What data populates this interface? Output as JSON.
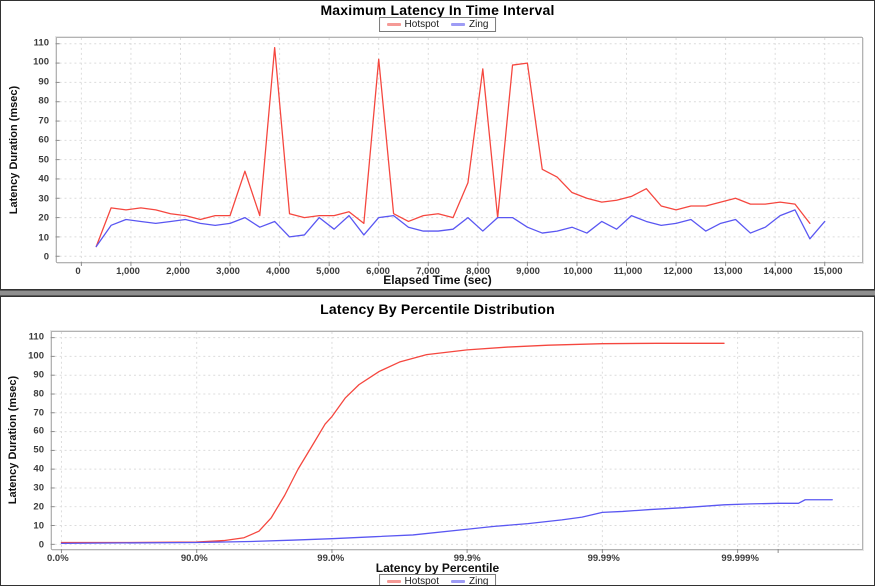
{
  "chart_data": [
    {
      "type": "line",
      "title": "Maximum Latency In Time Interval",
      "legend_position": "top",
      "grid": "dashed horizontal and vertical",
      "x_axis": {
        "label": "Elapsed Time (sec)",
        "min": -440,
        "max": 15700,
        "ticks": [
          {
            "v": 0,
            "label": "0"
          },
          {
            "v": 1000,
            "label": "1,000"
          },
          {
            "v": 2000,
            "label": "2,000"
          },
          {
            "v": 3000,
            "label": "3,000"
          },
          {
            "v": 4000,
            "label": "4,000"
          },
          {
            "v": 5000,
            "label": "5,000"
          },
          {
            "v": 6000,
            "label": "6,000"
          },
          {
            "v": 7000,
            "label": "7,000"
          },
          {
            "v": 8000,
            "label": "8,000"
          },
          {
            "v": 9000,
            "label": "9,000"
          },
          {
            "v": 10000,
            "label": "10,000"
          },
          {
            "v": 11000,
            "label": "11,000"
          },
          {
            "v": 12000,
            "label": "12,000"
          },
          {
            "v": 13000,
            "label": "13,000"
          },
          {
            "v": 14000,
            "label": "14,000"
          },
          {
            "v": 15000,
            "label": "15,000"
          }
        ]
      },
      "y_axis": {
        "label": "Latency Duration (msec)",
        "min": -3,
        "max": 113,
        "ticks": [
          {
            "v": 0,
            "label": "0"
          },
          {
            "v": 10,
            "label": "10"
          },
          {
            "v": 20,
            "label": "20"
          },
          {
            "v": 30,
            "label": "30"
          },
          {
            "v": 40,
            "label": "40"
          },
          {
            "v": 50,
            "label": "50"
          },
          {
            "v": 60,
            "label": "60"
          },
          {
            "v": 70,
            "label": "70"
          },
          {
            "v": 80,
            "label": "80"
          },
          {
            "v": 90,
            "label": "90"
          },
          {
            "v": 100,
            "label": "100"
          },
          {
            "v": 110,
            "label": "110"
          }
        ]
      },
      "series": [
        {
          "name": "Hotspot",
          "color": "#f5473f",
          "legend_color": "#f59a96",
          "points": [
            [
              300,
              5
            ],
            [
              600,
              25
            ],
            [
              900,
              24
            ],
            [
              1200,
              25
            ],
            [
              1500,
              24
            ],
            [
              1800,
              22
            ],
            [
              2100,
              21
            ],
            [
              2400,
              19
            ],
            [
              2700,
              21
            ],
            [
              3000,
              21
            ],
            [
              3300,
              44
            ],
            [
              3600,
              21
            ],
            [
              3900,
              108
            ],
            [
              4200,
              22
            ],
            [
              4500,
              20
            ],
            [
              4800,
              21
            ],
            [
              5100,
              21
            ],
            [
              5400,
              23
            ],
            [
              5700,
              17
            ],
            [
              6000,
              102
            ],
            [
              6300,
              22
            ],
            [
              6600,
              18
            ],
            [
              6900,
              21
            ],
            [
              7200,
              22
            ],
            [
              7500,
              20
            ],
            [
              7800,
              38
            ],
            [
              8100,
              97
            ],
            [
              8400,
              20
            ],
            [
              8700,
              99
            ],
            [
              9000,
              100
            ],
            [
              9300,
              45
            ],
            [
              9600,
              41
            ],
            [
              9900,
              33
            ],
            [
              10200,
              30
            ],
            [
              10500,
              28
            ],
            [
              10800,
              29
            ],
            [
              11100,
              31
            ],
            [
              11400,
              35
            ],
            [
              11700,
              26
            ],
            [
              12000,
              24
            ],
            [
              12300,
              26
            ],
            [
              12600,
              26
            ],
            [
              12900,
              28
            ],
            [
              13200,
              30
            ],
            [
              13500,
              27
            ],
            [
              13800,
              27
            ],
            [
              14100,
              28
            ],
            [
              14400,
              27
            ],
            [
              14700,
              17
            ]
          ]
        },
        {
          "name": "Zing",
          "color": "#5a57f2",
          "legend_color": "#9e9cf5",
          "points": [
            [
              300,
              5
            ],
            [
              600,
              16
            ],
            [
              900,
              19
            ],
            [
              1200,
              18
            ],
            [
              1500,
              17
            ],
            [
              1800,
              18
            ],
            [
              2100,
              19
            ],
            [
              2400,
              17
            ],
            [
              2700,
              16
            ],
            [
              3000,
              17
            ],
            [
              3300,
              20
            ],
            [
              3600,
              15
            ],
            [
              3900,
              18
            ],
            [
              4200,
              10
            ],
            [
              4500,
              11
            ],
            [
              4800,
              20
            ],
            [
              5100,
              14
            ],
            [
              5400,
              21
            ],
            [
              5700,
              11
            ],
            [
              6000,
              20
            ],
            [
              6300,
              21
            ],
            [
              6600,
              15
            ],
            [
              6900,
              13
            ],
            [
              7200,
              13
            ],
            [
              7500,
              14
            ],
            [
              7800,
              20
            ],
            [
              8100,
              13
            ],
            [
              8400,
              20
            ],
            [
              8700,
              20
            ],
            [
              9000,
              15
            ],
            [
              9300,
              12
            ],
            [
              9600,
              13
            ],
            [
              9900,
              15
            ],
            [
              10200,
              12
            ],
            [
              10500,
              18
            ],
            [
              10800,
              14
            ],
            [
              11100,
              21
            ],
            [
              11400,
              18
            ],
            [
              11700,
              16
            ],
            [
              12000,
              17
            ],
            [
              12300,
              19
            ],
            [
              12600,
              13
            ],
            [
              12900,
              17
            ],
            [
              13200,
              19
            ],
            [
              13500,
              12
            ],
            [
              13800,
              15
            ],
            [
              14100,
              21
            ],
            [
              14400,
              24
            ],
            [
              14700,
              9
            ],
            [
              15000,
              18
            ]
          ]
        }
      ]
    },
    {
      "type": "line",
      "title": "Latency By Percentile Distribution",
      "legend_position": "bottom",
      "grid": "dashed horizontal and vertical",
      "x_axis": {
        "label": "Latency by Percentile",
        "scale": "log-percentile, x = -log10(1-p) decades",
        "min": -0.05,
        "max": 5.9,
        "ticks": [
          {
            "v": 0,
            "label": "0.0%"
          },
          {
            "v": 1,
            "label": "90.0%"
          },
          {
            "v": 2,
            "label": "99.0%"
          },
          {
            "v": 3,
            "label": "99.9%"
          },
          {
            "v": 4,
            "label": "99.99%"
          },
          {
            "v": 5,
            "label": "99.999%"
          },
          {
            "v": 5.3,
            "label": ""
          }
        ]
      },
      "y_axis": {
        "label": "Latency Duration (msec)",
        "min": -2.5,
        "max": 113,
        "ticks": [
          {
            "v": 0,
            "label": "0"
          },
          {
            "v": 10,
            "label": "10"
          },
          {
            "v": 20,
            "label": "20"
          },
          {
            "v": 30,
            "label": "30"
          },
          {
            "v": 40,
            "label": "40"
          },
          {
            "v": 50,
            "label": "50"
          },
          {
            "v": 60,
            "label": "60"
          },
          {
            "v": 70,
            "label": "70"
          },
          {
            "v": 80,
            "label": "80"
          },
          {
            "v": 90,
            "label": "90"
          },
          {
            "v": 100,
            "label": "100"
          },
          {
            "v": 110,
            "label": "110"
          }
        ]
      },
      "series": [
        {
          "name": "Hotspot",
          "color": "#f5473f",
          "legend_color": "#f59a96",
          "points": [
            [
              0,
              1
            ],
            [
              0.5,
              1
            ],
            [
              1.0,
              1.2
            ],
            [
              1.2,
              2
            ],
            [
              1.35,
              3.5
            ],
            [
              1.46,
              7
            ],
            [
              1.55,
              14
            ],
            [
              1.65,
              26
            ],
            [
              1.75,
              40
            ],
            [
              1.85,
              52
            ],
            [
              1.95,
              64
            ],
            [
              2.0,
              68
            ],
            [
              2.1,
              78
            ],
            [
              2.2,
              85
            ],
            [
              2.35,
              92
            ],
            [
              2.5,
              97
            ],
            [
              2.7,
              101
            ],
            [
              3.0,
              103.5
            ],
            [
              3.3,
              105
            ],
            [
              3.6,
              106
            ],
            [
              4.0,
              106.8
            ],
            [
              4.4,
              107
            ],
            [
              4.9,
              107
            ]
          ]
        },
        {
          "name": "Zing",
          "color": "#5a57f2",
          "legend_color": "#9e9cf5",
          "points": [
            [
              0,
              0.5
            ],
            [
              1.0,
              1
            ],
            [
              1.4,
              1.5
            ],
            [
              1.7,
              2.2
            ],
            [
              2.0,
              3
            ],
            [
              2.3,
              4
            ],
            [
              2.6,
              5
            ],
            [
              3.0,
              8
            ],
            [
              3.2,
              9.5
            ],
            [
              3.45,
              11
            ],
            [
              3.7,
              13
            ],
            [
              3.85,
              14.5
            ],
            [
              4.0,
              17
            ],
            [
              4.15,
              17.5
            ],
            [
              4.35,
              18.5
            ],
            [
              4.6,
              19.5
            ],
            [
              4.9,
              21
            ],
            [
              5.1,
              21.5
            ],
            [
              5.3,
              21.8
            ],
            [
              5.45,
              21.8
            ],
            [
              5.5,
              23.7
            ],
            [
              5.7,
              23.7
            ]
          ]
        }
      ]
    }
  ]
}
